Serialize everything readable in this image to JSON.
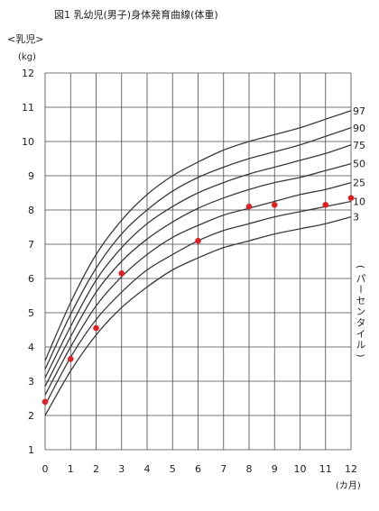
{
  "chart_data": {
    "type": "line",
    "title": "図1  乳幼児(男子)身体発育曲線(体重)",
    "group_label": "<乳児>",
    "ylabel": "(kg)",
    "xlabel": "(カ月)",
    "right_axis_label": "(パーセンタイル)",
    "xlim": [
      0,
      12
    ],
    "ylim": [
      1,
      12
    ],
    "x_ticks": [
      0,
      1,
      2,
      3,
      4,
      5,
      6,
      7,
      8,
      9,
      10,
      11,
      12
    ],
    "y_ticks": [
      1,
      2,
      3,
      4,
      5,
      6,
      7,
      8,
      9,
      10,
      11,
      12
    ],
    "grid": true,
    "x": [
      0,
      1,
      2,
      3,
      4,
      5,
      6,
      7,
      8,
      9,
      10,
      11,
      12
    ],
    "series": [
      {
        "name": "97",
        "values": [
          3.6,
          5.3,
          6.7,
          7.7,
          8.45,
          9.0,
          9.4,
          9.75,
          10.0,
          10.2,
          10.4,
          10.65,
          10.9
        ]
      },
      {
        "name": "90",
        "values": [
          3.35,
          4.95,
          6.3,
          7.3,
          8.0,
          8.55,
          8.95,
          9.25,
          9.5,
          9.7,
          9.9,
          10.15,
          10.4
        ]
      },
      {
        "name": "75",
        "values": [
          3.1,
          4.6,
          5.95,
          6.9,
          7.6,
          8.1,
          8.5,
          8.8,
          9.05,
          9.25,
          9.45,
          9.65,
          9.9
        ]
      },
      {
        "name": "50",
        "values": [
          2.85,
          4.3,
          5.6,
          6.5,
          7.15,
          7.65,
          8.05,
          8.35,
          8.6,
          8.8,
          8.95,
          9.15,
          9.35
        ]
      },
      {
        "name": "25",
        "values": [
          2.6,
          4.0,
          5.2,
          6.05,
          6.7,
          7.2,
          7.55,
          7.85,
          8.05,
          8.25,
          8.45,
          8.6,
          8.8
        ]
      },
      {
        "name": "10",
        "values": [
          2.3,
          3.7,
          4.8,
          5.6,
          6.25,
          6.7,
          7.1,
          7.4,
          7.6,
          7.8,
          7.95,
          8.1,
          8.25
        ]
      },
      {
        "name": "3",
        "values": [
          2.0,
          3.3,
          4.35,
          5.15,
          5.75,
          6.25,
          6.6,
          6.9,
          7.1,
          7.3,
          7.45,
          7.6,
          7.8
        ]
      }
    ],
    "points": [
      {
        "x": 0,
        "y": 2.4
      },
      {
        "x": 1,
        "y": 3.65
      },
      {
        "x": 2,
        "y": 4.55
      },
      {
        "x": 3,
        "y": 6.15
      },
      {
        "x": 6,
        "y": 7.1
      },
      {
        "x": 8,
        "y": 8.1
      },
      {
        "x": 9,
        "y": 8.15
      },
      {
        "x": 11,
        "y": 8.15
      },
      {
        "x": 12,
        "y": 8.35
      }
    ],
    "colors": {
      "grid": "#4a4a4a",
      "curve": "#3a3a3a",
      "point": "#e02020",
      "text": "#222222"
    }
  }
}
